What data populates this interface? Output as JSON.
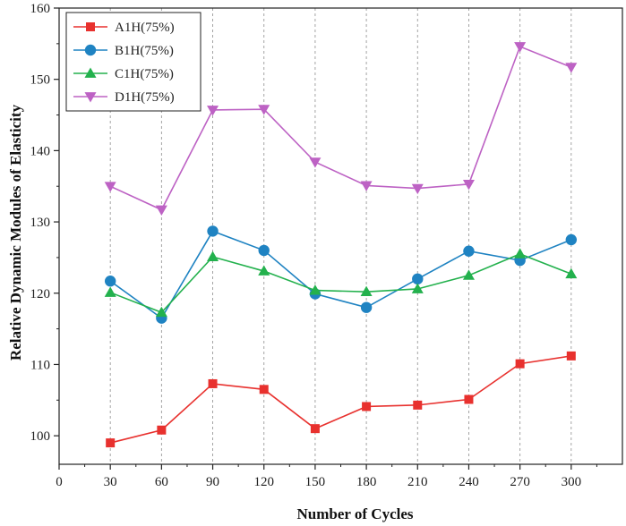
{
  "chart_data": {
    "type": "line",
    "title": "",
    "xlabel": "Number of Cycles",
    "ylabel": "Relative Dynamic Modules of Elasticity",
    "x": [
      30,
      60,
      90,
      120,
      150,
      180,
      210,
      240,
      270,
      300
    ],
    "xticks": [
      0,
      30,
      60,
      90,
      120,
      150,
      180,
      210,
      240,
      270,
      300
    ],
    "yticks": [
      100,
      110,
      120,
      130,
      140,
      150,
      160
    ],
    "xlim": [
      0,
      330
    ],
    "ylim": [
      96,
      160
    ],
    "grid": "vertical dashed",
    "legend_position": "top-left",
    "series": [
      {
        "name": "A1H(75%)",
        "color": "#e8312e",
        "marker": "square",
        "values": [
          99.0,
          100.8,
          107.3,
          106.5,
          101.0,
          104.1,
          104.3,
          105.1,
          110.1,
          111.2
        ]
      },
      {
        "name": "B1H(75%)",
        "color": "#1f83c2",
        "marker": "circle",
        "values": [
          121.7,
          116.5,
          128.7,
          126.0,
          119.9,
          118.0,
          122.0,
          125.9,
          124.6,
          127.5
        ]
      },
      {
        "name": "C1H(75%)",
        "color": "#23b14d",
        "marker": "triangle-up",
        "values": [
          120.1,
          117.3,
          125.1,
          123.1,
          120.4,
          120.2,
          120.6,
          122.5,
          125.5,
          122.7
        ]
      },
      {
        "name": "D1H(75%)",
        "color": "#bd62c4",
        "marker": "triangle-down",
        "values": [
          135.0,
          131.7,
          145.7,
          145.8,
          138.4,
          135.1,
          134.7,
          135.3,
          154.6,
          151.7
        ]
      }
    ]
  }
}
